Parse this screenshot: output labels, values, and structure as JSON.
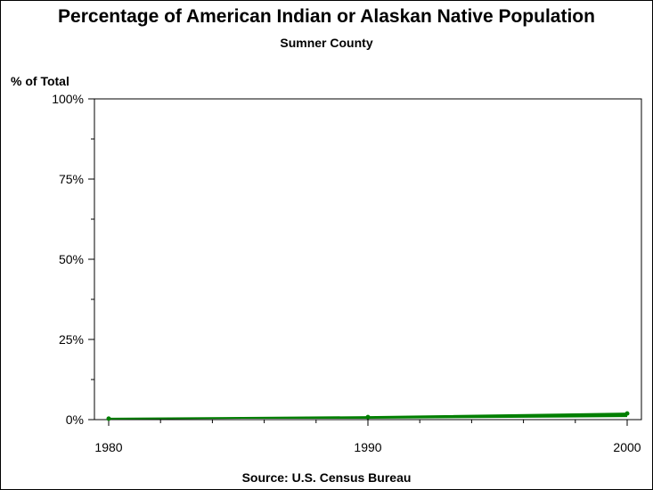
{
  "chart_data": {
    "type": "line",
    "title": "Percentage of American Indian or Alaskan Native Population",
    "subtitle": "Sumner County",
    "ylabel": "% of Total",
    "xlabel": "",
    "source": "Source: U.S. Census Bureau",
    "x": [
      1980,
      1990,
      2000
    ],
    "series": [
      {
        "values": [
          0.3,
          0.8,
          1.9
        ]
      }
    ],
    "xlim": [
      1980,
      2000
    ],
    "ylim": [
      0,
      100
    ],
    "x_ticks": [
      1980,
      1990,
      2000
    ],
    "x_tick_labels": [
      "1980",
      "1990",
      "2000"
    ],
    "y_ticks": [
      0,
      25,
      50,
      75,
      100
    ],
    "y_tick_labels": [
      "0%",
      "25%",
      "50%",
      "75%",
      "100%"
    ],
    "grid": false,
    "colors": {
      "series": "#007f00",
      "axis": "#000000"
    }
  }
}
